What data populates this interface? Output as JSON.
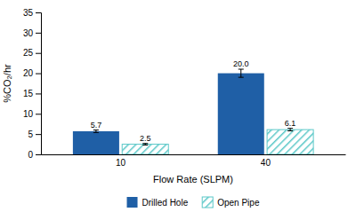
{
  "chart_data": {
    "type": "bar",
    "categories": [
      "10",
      "40"
    ],
    "series": [
      {
        "name": "Drilled Hole",
        "color": "#1F5FA6",
        "values": [
          5.7,
          20.0
        ],
        "errors": [
          0.3,
          1.0
        ],
        "value_labels": [
          "5.7",
          "20.0"
        ]
      },
      {
        "name": "Open Pipe",
        "color": "#5BC8C8",
        "values": [
          2.5,
          6.1
        ],
        "errors": [
          0.2,
          0.3
        ],
        "value_labels": [
          "2.5",
          "6.1"
        ]
      }
    ],
    "xlabel": "Flow Rate (SLPM)",
    "ylabel": "%CO₂/hr",
    "ylim": [
      0,
      35
    ],
    "yticks": [
      0,
      5,
      10,
      15,
      20,
      25,
      30,
      35
    ],
    "grid": false,
    "legend": "bottom",
    "data_labels": true
  }
}
